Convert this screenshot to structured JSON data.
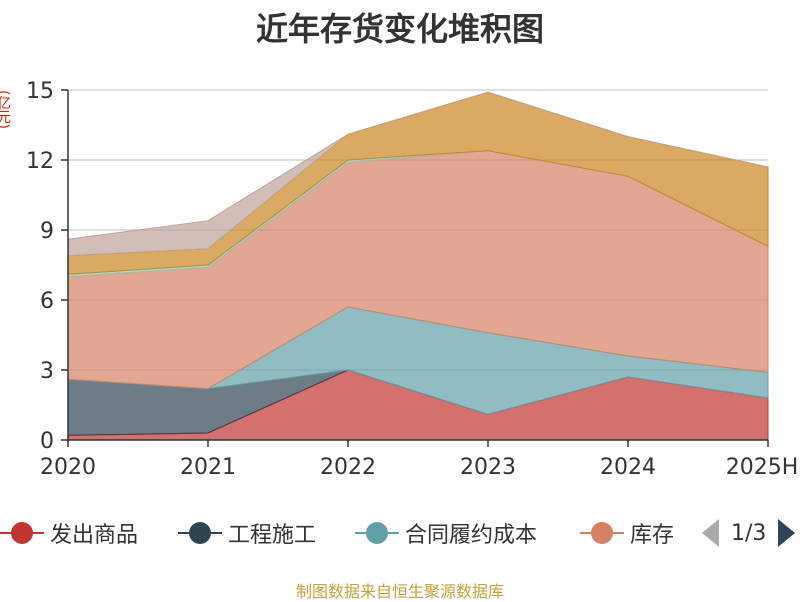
{
  "chart_data": {
    "type": "area",
    "stacked": true,
    "title": "近年存货变化堆积图",
    "unit_label": "(亿元)",
    "categories": [
      "2020",
      "2021",
      "2022",
      "2023",
      "2024",
      "2025H"
    ],
    "ylim": [
      0,
      15
    ],
    "yticks": [
      "0",
      "3",
      "6",
      "9",
      "12",
      "15"
    ],
    "grid": true,
    "series": [
      {
        "name": "发出商品",
        "color": "#c23531",
        "values": [
          0.2,
          0.3,
          3.0,
          1.1,
          2.7,
          1.8
        ]
      },
      {
        "name": "工程施工",
        "color": "#2f4554",
        "values": [
          2.4,
          1.9,
          0.0,
          0.0,
          0.0,
          0.0
        ]
      },
      {
        "name": "合同履约成本",
        "color": "#61a0a8",
        "values": [
          0.0,
          0.0,
          2.7,
          3.5,
          0.9,
          1.1
        ]
      },
      {
        "name": "库存",
        "color": "#d48265",
        "values": [
          4.4,
          5.2,
          6.2,
          7.8,
          7.7,
          5.4
        ]
      },
      {
        "name": "",
        "color": "#91c7ae",
        "values": [
          0.1,
          0.1,
          0.1,
          0.0,
          0.0,
          0.0
        ]
      },
      {
        "name": "",
        "color": "#ca8622",
        "values": [
          0.8,
          0.7,
          1.1,
          2.5,
          1.7,
          3.4
        ]
      },
      {
        "name": "",
        "color": "#bda29a",
        "values": [
          0.7,
          1.2,
          0.0,
          0.0,
          0.0,
          0.0
        ]
      }
    ]
  },
  "legend": {
    "items": [
      {
        "label": "发出商品",
        "color": "#c23531"
      },
      {
        "label": "工程施工",
        "color": "#2f4554"
      },
      {
        "label": "合同履约成本",
        "color": "#61a0a8"
      },
      {
        "label": "库存",
        "color": "#d48265"
      }
    ],
    "page": "1/3"
  },
  "footer": {
    "source": "制图数据来自恒生聚源数据库"
  }
}
